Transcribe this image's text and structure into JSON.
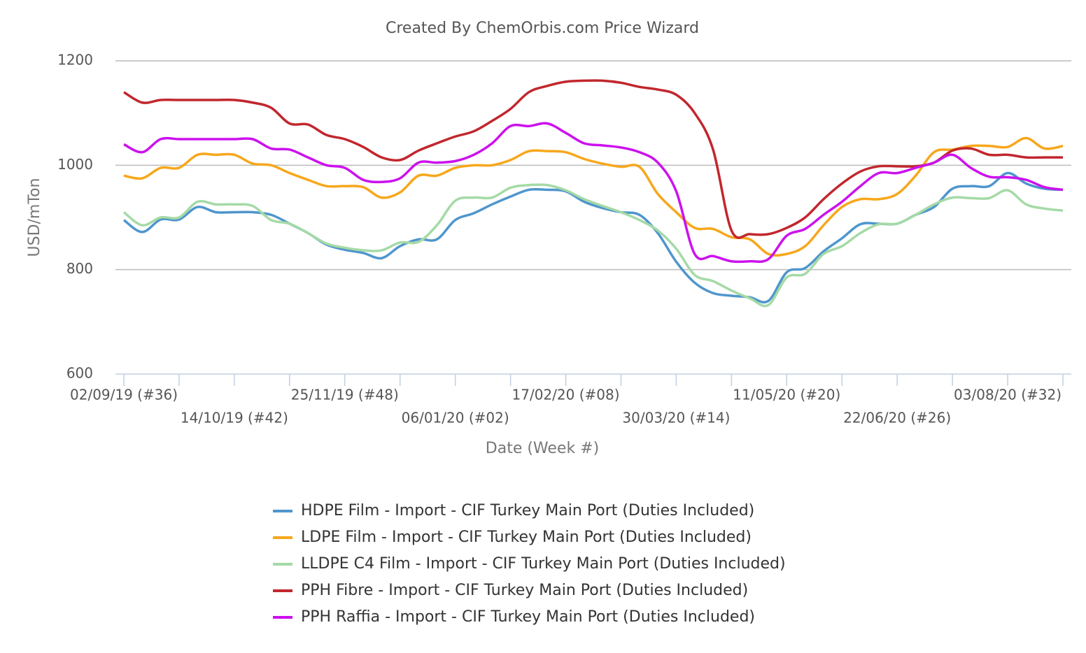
{
  "chart_data": {
    "type": "line",
    "title": "Created By ChemOrbis.com Price Wizard",
    "x_label": "Date (Week #)",
    "y_label": "USD/mTon",
    "categories": [
      "02/09/19 (#36)",
      null,
      null,
      null,
      null,
      null,
      "14/10/19 (#42)",
      null,
      null,
      null,
      null,
      null,
      "25/11/19 (#48)",
      null,
      null,
      null,
      null,
      null,
      "06/01/20 (#02)",
      null,
      null,
      null,
      null,
      null,
      "17/02/20 (#08)",
      null,
      null,
      null,
      null,
      null,
      "30/03/20 (#14)",
      null,
      null,
      null,
      null,
      null,
      "11/05/20 (#20)",
      null,
      null,
      null,
      null,
      null,
      "22/06/20 (#26)",
      null,
      null,
      null,
      null,
      null,
      "03/08/20 (#32)",
      null,
      null,
      null
    ],
    "ylim": [
      600,
      1200
    ],
    "yticks": [
      600,
      800,
      1000,
      1200
    ],
    "grid": true,
    "legend": "bottom",
    "series": [
      {
        "name": "HDPE Film - Import - CIF Turkey Main Port (Duties Included)",
        "color": "#4f96cd",
        "values": [
          895,
          872,
          896,
          896,
          920,
          910,
          910,
          910,
          905,
          888,
          870,
          848,
          838,
          832,
          822,
          845,
          858,
          858,
          895,
          908,
          925,
          940,
          953,
          953,
          950,
          930,
          918,
          910,
          905,
          870,
          815,
          775,
          755,
          750,
          747,
          740,
          795,
          803,
          835,
          860,
          887,
          888,
          888,
          905,
          920,
          955,
          960,
          960,
          985,
          965,
          955,
          953
        ]
      },
      {
        "name": "LDPE Film - Import - CIF Turkey Main Port (Duties Included)",
        "color": "#f7a71c",
        "values": [
          980,
          975,
          995,
          995,
          1020,
          1020,
          1020,
          1003,
          1000,
          985,
          972,
          960,
          960,
          958,
          938,
          948,
          980,
          980,
          995,
          1000,
          1000,
          1010,
          1027,
          1027,
          1025,
          1012,
          1003,
          997,
          997,
          945,
          910,
          880,
          878,
          862,
          858,
          830,
          830,
          845,
          885,
          920,
          935,
          935,
          945,
          980,
          1025,
          1030,
          1037,
          1037,
          1035,
          1052,
          1032,
          1037
        ]
      },
      {
        "name": "LLDPE C4 Film - Import - CIF Turkey Main Port (Duties Included)",
        "color": "#a5daa6",
        "values": [
          910,
          885,
          900,
          900,
          930,
          925,
          925,
          922,
          895,
          888,
          870,
          850,
          842,
          837,
          837,
          852,
          853,
          885,
          932,
          938,
          938,
          957,
          962,
          962,
          952,
          935,
          922,
          910,
          895,
          875,
          840,
          790,
          778,
          760,
          745,
          732,
          785,
          792,
          830,
          845,
          870,
          887,
          888,
          905,
          925,
          938,
          937,
          937,
          952,
          925,
          917,
          913
        ]
      },
      {
        "name": "PPH Fibre - Import - CIF Turkey Main Port (Duties Included)",
        "color": "#c1272d",
        "values": [
          1140,
          1120,
          1125,
          1125,
          1125,
          1125,
          1125,
          1120,
          1110,
          1080,
          1078,
          1058,
          1050,
          1035,
          1015,
          1010,
          1028,
          1042,
          1055,
          1065,
          1085,
          1108,
          1140,
          1152,
          1160,
          1162,
          1162,
          1158,
          1150,
          1145,
          1135,
          1100,
          1030,
          875,
          868,
          868,
          880,
          900,
          935,
          965,
          988,
          998,
          998,
          998,
          1005,
          1028,
          1032,
          1020,
          1020,
          1015,
          1015,
          1015
        ]
      },
      {
        "name": "PPH Raffia - Import - CIF Turkey Main Port (Duties Included)",
        "color": "#cc11ee",
        "values": [
          1040,
          1025,
          1050,
          1050,
          1050,
          1050,
          1050,
          1050,
          1032,
          1030,
          1015,
          1000,
          995,
          972,
          968,
          975,
          1005,
          1005,
          1008,
          1020,
          1042,
          1075,
          1075,
          1080,
          1062,
          1042,
          1038,
          1034,
          1025,
          1005,
          950,
          830,
          826,
          816,
          816,
          820,
          865,
          878,
          905,
          930,
          960,
          985,
          985,
          995,
          1005,
          1020,
          995,
          978,
          977,
          972,
          958,
          953
        ]
      }
    ]
  }
}
